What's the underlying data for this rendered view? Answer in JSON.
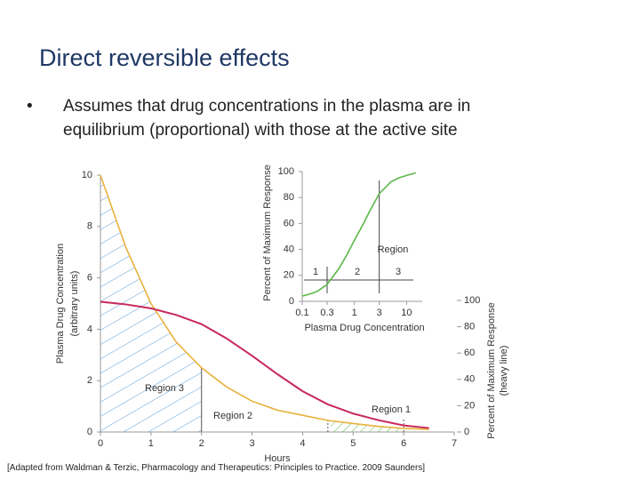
{
  "title": "Direct reversible effects",
  "bullets": [
    "Assumes that drug concentrations in the plasma are in equilibrium (proportional) with those at the active site"
  ],
  "citation": "[Adapted from Waldman & Terzic, Pharmacology and Therapeutics: Principles to Practice. 2009 Saunders]",
  "chart_data": [
    {
      "type": "line",
      "xlabel": "Hours",
      "ylabel": [
        "Plasma Drug Concentration",
        "(arbitrary units)"
      ],
      "y2label": [
        "Percent of Maximum Response",
        "(heavy line)"
      ],
      "xlim": [
        0,
        7
      ],
      "xticks": [
        0,
        1,
        2,
        3,
        4,
        5,
        6,
        7
      ],
      "ylim": [
        0,
        10
      ],
      "yticks": [
        0,
        2,
        4,
        6,
        8,
        10
      ],
      "y2lim": [
        0,
        100
      ],
      "y2ticks": [
        0,
        20,
        40,
        60,
        80,
        100
      ],
      "annotations": [
        "Region 3",
        "Region 2",
        "Region 1"
      ],
      "series": [
        {
          "name": "Plasma drug concentration",
          "color": "#e8b23c",
          "x": [
            0,
            0.5,
            1,
            1.5,
            2,
            2.5,
            3,
            3.5,
            4,
            4.5,
            5,
            5.5,
            6,
            6.5
          ],
          "values": [
            10,
            7.2,
            5.0,
            3.5,
            2.5,
            1.75,
            1.2,
            0.85,
            0.65,
            0.45,
            0.33,
            0.22,
            0.14,
            0.1
          ]
        },
        {
          "name": "Percent of maximum response",
          "color": "#c8285a",
          "axis": "y2",
          "x": [
            0,
            0.5,
            1,
            1.5,
            2,
            2.5,
            3,
            3.5,
            4,
            4.5,
            5,
            5.5,
            6,
            6.5
          ],
          "values": [
            99,
            97,
            94,
            89,
            82,
            71,
            58,
            44,
            31,
            21,
            14,
            9,
            5,
            3
          ]
        }
      ]
    },
    {
      "type": "line",
      "xlabel": "Plasma Drug Concentration",
      "ylabel": [
        "Percent of Maximum Response"
      ],
      "xscale": "log",
      "xlim": [
        0.1,
        20
      ],
      "xticks": [
        0.1,
        0.3,
        1,
        3,
        10
      ],
      "ylim": [
        0,
        100
      ],
      "yticks": [
        0,
        20,
        40,
        60,
        80,
        100
      ],
      "annotations": [
        "Region",
        "1",
        "2",
        "3"
      ],
      "series": [
        {
          "name": "Response",
          "color": "#5cb848",
          "x": [
            0.1,
            0.15,
            0.2,
            0.3,
            0.5,
            0.7,
            1,
            1.5,
            2,
            3,
            5,
            7,
            10,
            15
          ],
          "values": [
            4,
            6,
            8,
            13,
            25,
            35,
            47,
            60,
            70,
            83,
            92,
            95,
            97,
            99
          ]
        }
      ]
    }
  ]
}
